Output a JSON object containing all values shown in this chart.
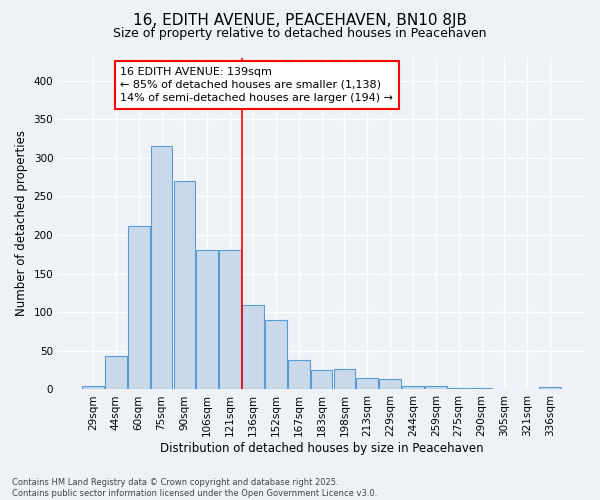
{
  "title": "16, EDITH AVENUE, PEACEHAVEN, BN10 8JB",
  "subtitle": "Size of property relative to detached houses in Peacehaven",
  "xlabel": "Distribution of detached houses by size in Peacehaven",
  "ylabel": "Number of detached properties",
  "categories": [
    "29sqm",
    "44sqm",
    "60sqm",
    "75sqm",
    "90sqm",
    "106sqm",
    "121sqm",
    "136sqm",
    "152sqm",
    "167sqm",
    "183sqm",
    "198sqm",
    "213sqm",
    "229sqm",
    "244sqm",
    "259sqm",
    "275sqm",
    "290sqm",
    "305sqm",
    "321sqm",
    "336sqm"
  ],
  "values": [
    5,
    43,
    212,
    315,
    270,
    180,
    180,
    110,
    90,
    38,
    25,
    26,
    15,
    13,
    5,
    5,
    2,
    2,
    0,
    0,
    3
  ],
  "bar_color": "#c9d9ea",
  "bar_edge_color": "#5b9bd5",
  "vline_color": "red",
  "vline_index": 7,
  "annotation_text": "16 EDITH AVENUE: 139sqm\n← 85% of detached houses are smaller (1,138)\n14% of semi-detached houses are larger (194) →",
  "annotation_box_color": "white",
  "annotation_box_edge": "red",
  "footer": "Contains HM Land Registry data © Crown copyright and database right 2025.\nContains public sector information licensed under the Open Government Licence v3.0.",
  "ylim": [
    0,
    430
  ],
  "background_color": "#eef2f7",
  "title_fontsize": 11,
  "subtitle_fontsize": 9,
  "tick_fontsize": 7.5,
  "ylabel_fontsize": 8.5,
  "xlabel_fontsize": 8.5,
  "annotation_fontsize": 8,
  "footer_fontsize": 6
}
